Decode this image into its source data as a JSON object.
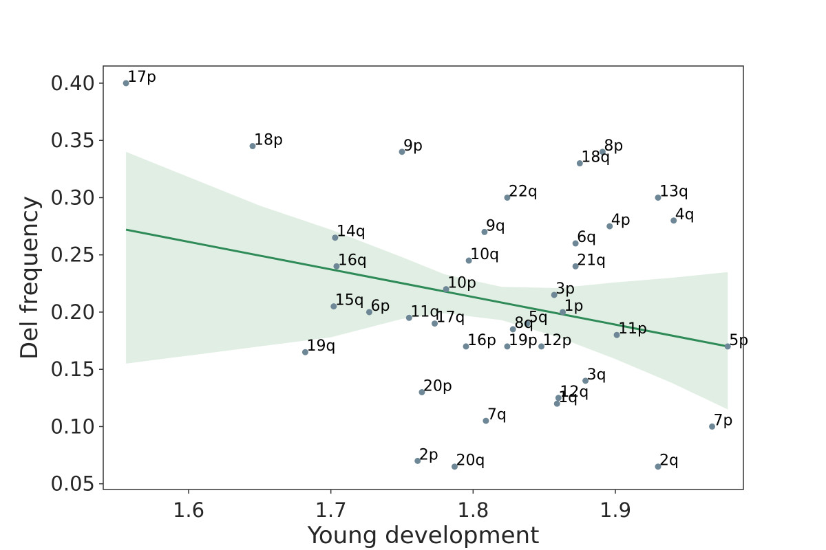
{
  "chart_data": {
    "type": "scatter",
    "title": "",
    "xlabel": "Young development",
    "ylabel": "Del frequency",
    "xlim": [
      1.54,
      1.99
    ],
    "ylim": [
      0.045,
      0.415
    ],
    "xticks": [
      1.6,
      1.7,
      1.8,
      1.9
    ],
    "xtick_labels": [
      "1.6",
      "1.7",
      "1.8",
      "1.9"
    ],
    "yticks": [
      0.05,
      0.1,
      0.15,
      0.2,
      0.25,
      0.3,
      0.35,
      0.4
    ],
    "ytick_labels": [
      "0.05",
      "0.10",
      "0.15",
      "0.20",
      "0.25",
      "0.30",
      "0.35",
      "0.40"
    ],
    "grid": false,
    "colors": {
      "point": "#6e8796",
      "line": "#2e8b57",
      "band": "#deede2",
      "axis": "#333333"
    },
    "points": [
      {
        "label": "17p",
        "x": 1.556,
        "y": 0.4
      },
      {
        "label": "18p",
        "x": 1.645,
        "y": 0.345
      },
      {
        "label": "9p",
        "x": 1.75,
        "y": 0.34
      },
      {
        "label": "8p",
        "x": 1.891,
        "y": 0.34
      },
      {
        "label": "18q",
        "x": 1.875,
        "y": 0.33
      },
      {
        "label": "22q",
        "x": 1.824,
        "y": 0.3
      },
      {
        "label": "13q",
        "x": 1.93,
        "y": 0.3
      },
      {
        "label": "4q",
        "x": 1.941,
        "y": 0.28
      },
      {
        "label": "4p",
        "x": 1.896,
        "y": 0.275
      },
      {
        "label": "9q",
        "x": 1.808,
        "y": 0.27
      },
      {
        "label": "14q",
        "x": 1.703,
        "y": 0.265
      },
      {
        "label": "6q",
        "x": 1.872,
        "y": 0.26
      },
      {
        "label": "10q",
        "x": 1.797,
        "y": 0.245
      },
      {
        "label": "16q",
        "x": 1.704,
        "y": 0.24
      },
      {
        "label": "21q",
        "x": 1.872,
        "y": 0.24
      },
      {
        "label": "10p",
        "x": 1.781,
        "y": 0.22
      },
      {
        "label": "3p",
        "x": 1.857,
        "y": 0.215
      },
      {
        "label": "15q",
        "x": 1.702,
        "y": 0.205
      },
      {
        "label": "6p",
        "x": 1.727,
        "y": 0.2
      },
      {
        "label": "1p",
        "x": 1.863,
        "y": 0.2
      },
      {
        "label": "11q",
        "x": 1.755,
        "y": 0.195
      },
      {
        "label": "17q",
        "x": 1.773,
        "y": 0.19
      },
      {
        "label": "5q",
        "x": 1.838,
        "y": 0.19
      },
      {
        "label": "8q",
        "x": 1.828,
        "y": 0.185
      },
      {
        "label": "11p",
        "x": 1.901,
        "y": 0.18
      },
      {
        "label": "16p",
        "x": 1.795,
        "y": 0.17
      },
      {
        "label": "19p",
        "x": 1.824,
        "y": 0.17
      },
      {
        "label": "12p",
        "x": 1.848,
        "y": 0.17
      },
      {
        "label": "5p",
        "x": 1.979,
        "y": 0.17
      },
      {
        "label": "19q",
        "x": 1.682,
        "y": 0.165
      },
      {
        "label": "3q",
        "x": 1.879,
        "y": 0.14
      },
      {
        "label": "20p",
        "x": 1.764,
        "y": 0.13
      },
      {
        "label": "12q",
        "x": 1.86,
        "y": 0.125
      },
      {
        "label": "1q",
        "x": 1.859,
        "y": 0.12
      },
      {
        "label": "7q",
        "x": 1.809,
        "y": 0.105
      },
      {
        "label": "7p",
        "x": 1.968,
        "y": 0.1
      },
      {
        "label": "2p",
        "x": 1.761,
        "y": 0.07
      },
      {
        "label": "20q",
        "x": 1.787,
        "y": 0.065
      },
      {
        "label": "2q",
        "x": 1.93,
        "y": 0.065
      }
    ],
    "regression": {
      "x": [
        1.556,
        1.979
      ],
      "y": [
        0.272,
        0.17
      ],
      "ci_x": [
        1.556,
        1.6,
        1.65,
        1.7,
        1.75,
        1.78,
        1.82,
        1.86,
        1.9,
        1.94,
        1.979
      ],
      "ci_upper": [
        0.34,
        0.318,
        0.293,
        0.272,
        0.248,
        0.233,
        0.222,
        0.221,
        0.226,
        0.23,
        0.235
      ],
      "ci_lower": [
        0.155,
        0.162,
        0.17,
        0.178,
        0.194,
        0.199,
        0.193,
        0.178,
        0.159,
        0.138,
        0.115
      ]
    }
  }
}
